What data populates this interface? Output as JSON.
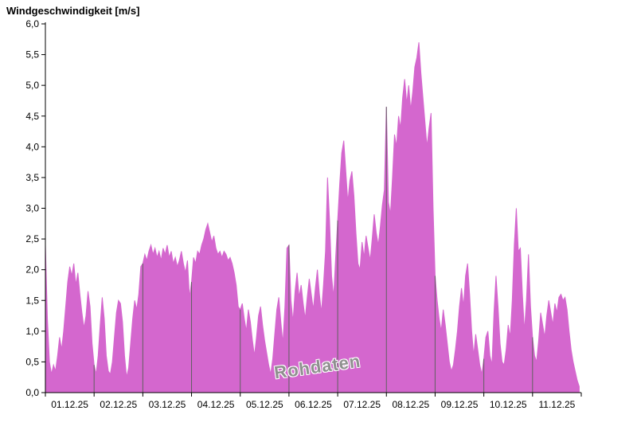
{
  "page": {
    "title": "Windgeschwindigkeit [m/s]"
  },
  "chart_data": {
    "type": "area",
    "title": "Windgeschwindigkeit [m/s]",
    "xlabel": "",
    "ylabel": "Windgeschwindigkeit [m/s]",
    "series_name": "Rohdaten",
    "watermark": {
      "text": "Rohdaten",
      "color": "#8f8f8f",
      "rotation_deg": -8
    },
    "x_tick_labels": [
      "01.12.25",
      "02.12.25",
      "03.12.25",
      "04.12.25",
      "05.12.25",
      "06.12.25",
      "07.12.25",
      "08.12.25",
      "09.12.25",
      "10.12.25",
      "11.12.25"
    ],
    "y_ticks": [
      0,
      0.5,
      1,
      1.5,
      2,
      2.5,
      3,
      3.5,
      4,
      4.5,
      5,
      5.5,
      6
    ],
    "y_tick_labels": [
      "0,0",
      "0,5",
      "1,0",
      "1,5",
      "2,0",
      "2,5",
      "3,0",
      "3,5",
      "4,0",
      "4,5",
      "5,0",
      "5,5",
      "6,0"
    ],
    "ylim": [
      0,
      6
    ],
    "x_days": 11,
    "samples_per_day": 24,
    "grid": "off",
    "legend": "none",
    "fill_color": "#d467ce",
    "day_line_color": "#606060",
    "axis_color": "#000000",
    "values": [
      2.4,
      1.2,
      0.5,
      0.3,
      0.45,
      0.35,
      0.6,
      0.9,
      0.7,
      1.0,
      1.4,
      1.8,
      2.05,
      1.9,
      2.1,
      1.75,
      1.95,
      1.6,
      1.3,
      1.05,
      1.25,
      1.65,
      1.4,
      0.8,
      0.45,
      0.3,
      0.6,
      1.1,
      1.55,
      1.2,
      0.6,
      0.35,
      0.3,
      0.5,
      0.9,
      1.3,
      1.5,
      1.45,
      1.15,
      0.6,
      0.25,
      0.4,
      0.8,
      1.2,
      1.5,
      1.35,
      1.6,
      2.05,
      2.1,
      2.25,
      2.15,
      2.3,
      2.4,
      2.25,
      2.35,
      2.2,
      2.3,
      2.15,
      2.35,
      2.25,
      2.4,
      2.2,
      2.3,
      2.1,
      2.2,
      2.05,
      2.15,
      2.3,
      2.1,
      1.95,
      2.15,
      1.55,
      1.8,
      2.2,
      2.1,
      2.3,
      2.25,
      2.4,
      2.5,
      2.65,
      2.75,
      2.6,
      2.45,
      2.55,
      2.35,
      2.25,
      2.3,
      2.2,
      2.3,
      2.25,
      2.15,
      2.2,
      2.1,
      1.95,
      1.75,
      1.4,
      1.35,
      1.45,
      1.2,
      1.0,
      1.35,
      1.15,
      0.85,
      0.6,
      0.9,
      1.25,
      1.4,
      1.1,
      0.85,
      0.65,
      0.45,
      0.3,
      0.55,
      0.95,
      1.35,
      1.55,
      1.15,
      0.8,
      1.4,
      2.35,
      2.4,
      1.5,
      1.15,
      1.65,
      1.95,
      1.55,
      1.75,
      1.45,
      1.2,
      1.55,
      1.85,
      1.6,
      1.35,
      1.7,
      2.0,
      1.6,
      1.3,
      1.75,
      2.3,
      3.5,
      2.8,
      1.9,
      1.55,
      2.2,
      2.8,
      3.4,
      3.9,
      4.1,
      3.6,
      3.1,
      3.45,
      3.6,
      3.2,
      2.6,
      2.1,
      2.0,
      2.45,
      2.2,
      2.55,
      2.35,
      2.15,
      2.5,
      2.9,
      2.6,
      2.4,
      2.7,
      3.05,
      3.3,
      4.65,
      3.1,
      2.9,
      3.5,
      4.2,
      4.0,
      4.5,
      4.3,
      4.8,
      5.1,
      4.7,
      5.0,
      4.6,
      4.9,
      5.3,
      5.45,
      5.7,
      5.2,
      4.8,
      4.4,
      4.0,
      4.3,
      4.55,
      3.0,
      1.9,
      1.5,
      1.2,
      1.0,
      1.35,
      1.1,
      0.8,
      0.5,
      0.35,
      0.45,
      0.7,
      1.0,
      1.4,
      1.7,
      1.4,
      1.9,
      2.1,
      1.6,
      1.0,
      0.6,
      0.95,
      0.7,
      0.45,
      0.3,
      0.55,
      0.9,
      1.0,
      0.6,
      0.45,
      1.3,
      1.9,
      1.4,
      0.8,
      0.5,
      0.45,
      0.7,
      1.1,
      0.9,
      1.5,
      2.4,
      3.0,
      2.3,
      2.35,
      1.6,
      1.0,
      1.5,
      2.25,
      1.4,
      0.9,
      0.6,
      0.5,
      0.85,
      1.3,
      1.1,
      0.9,
      1.25,
      1.5,
      1.3,
      1.1,
      1.45,
      1.3,
      1.55,
      1.6,
      1.5,
      1.55,
      1.35,
      1.0,
      0.7,
      0.5,
      0.35,
      0.2,
      0.1
    ]
  }
}
